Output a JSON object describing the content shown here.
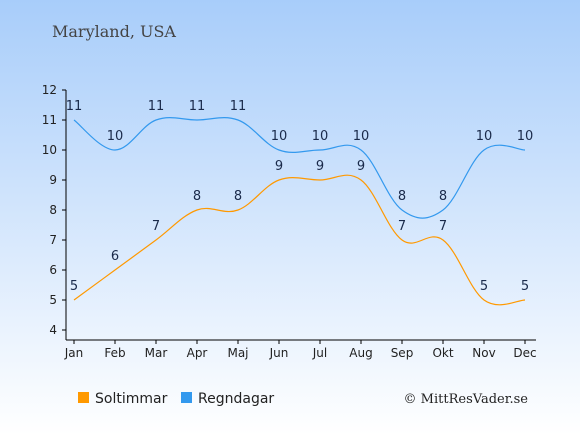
{
  "chart_data": {
    "type": "line",
    "title": "Maryland, USA",
    "xlabel": "",
    "ylabel": "",
    "categories": [
      "Jan",
      "Feb",
      "Mar",
      "Apr",
      "Maj",
      "Jun",
      "Jul",
      "Aug",
      "Sep",
      "Okt",
      "Nov",
      "Dec"
    ],
    "ylim": [
      4,
      12
    ],
    "yticks": [
      4,
      5,
      6,
      7,
      8,
      9,
      10,
      11,
      12
    ],
    "grid": false,
    "legend_position": "bottom",
    "series": [
      {
        "name": "Soltimmar",
        "color": "#ff9900",
        "values": [
          5,
          6,
          7,
          8,
          8,
          9,
          9,
          9,
          7,
          7,
          5,
          5
        ]
      },
      {
        "name": "Regndagar",
        "color": "#3399ee",
        "values": [
          11,
          10,
          11,
          11,
          11,
          10,
          10,
          10,
          8,
          8,
          10,
          10
        ]
      }
    ],
    "copyright": "© MittResVader.se"
  },
  "colors": {
    "background_top": "#a8cdfa",
    "background_bottom": "#ffffff",
    "axis": "#000000"
  }
}
